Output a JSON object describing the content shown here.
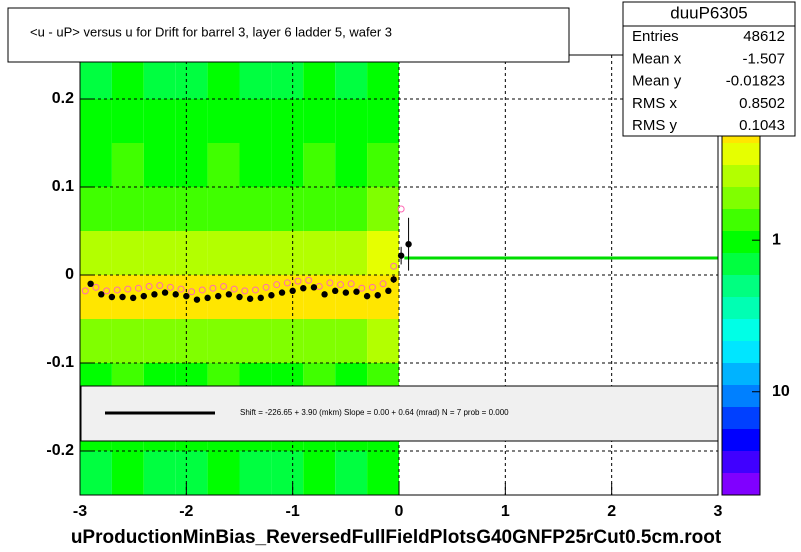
{
  "chart_data": {
    "type": "profile2d",
    "title": "<u - uP>       versus   u for Drift for barrel 3, layer 6 ladder 5, wafer 3",
    "xlabel": "uProductionMinBias_ReversedFullFieldPlotsG40GNFP25rCut0.5cm.root",
    "xlim": [
      -3,
      3
    ],
    "xticks": [
      -3,
      -2,
      -1,
      0,
      1,
      2,
      3
    ],
    "ylim": [
      -0.25,
      0.25
    ],
    "yticks": [
      -0.2,
      -0.1,
      0,
      0.1,
      0.2
    ],
    "grid": true,
    "zlog": true,
    "zlim": [
      0.06,
      48
    ],
    "zticks": [
      1,
      10
    ],
    "palette": [
      "#ff2a00",
      "#ff7f00",
      "#ffb300",
      "#ffe600",
      "#e6ff00",
      "#b3ff00",
      "#80ff00",
      "#40ff00",
      "#00ff00",
      "#00ff40",
      "#00ff80",
      "#00ffb3",
      "#00ffe6",
      "#00e6ff",
      "#00b3ff",
      "#0080ff",
      "#0040ff",
      "#0000ff",
      "#4000ff",
      "#8000ff"
    ],
    "heatmap": {
      "xbins": [
        -3,
        -2.7,
        -2.4,
        -2.1,
        -1.8,
        -1.5,
        -1.2,
        -0.9,
        -0.6,
        -0.3,
        0
      ],
      "ybins": [
        -0.25,
        -0.2,
        -0.15,
        -0.1,
        -0.05,
        0,
        0.05,
        0.1,
        0.15,
        0.2,
        0.25
      ],
      "z": [
        [
          1.3,
          1.2,
          1.4,
          1.3,
          1.2,
          1.3,
          1.4,
          1.2,
          1.3,
          1.2
        ],
        [
          1.1,
          1.0,
          1.2,
          1.1,
          1.0,
          1.1,
          1.2,
          1.0,
          1.1,
          1.0
        ],
        [
          0.9,
          0.8,
          0.9,
          0.9,
          0.8,
          0.9,
          0.9,
          0.8,
          0.9,
          0.8
        ],
        [
          0.5,
          0.45,
          0.5,
          0.5,
          0.45,
          0.5,
          0.5,
          0.45,
          0.5,
          0.4
        ],
        [
          0.22,
          0.2,
          0.22,
          0.21,
          0.2,
          0.22,
          0.21,
          0.2,
          0.22,
          0.18
        ],
        [
          0.35,
          0.32,
          0.35,
          0.34,
          0.32,
          0.35,
          0.34,
          0.32,
          0.35,
          0.3
        ],
        [
          0.7,
          0.65,
          0.7,
          0.7,
          0.65,
          0.7,
          0.7,
          0.65,
          0.7,
          0.6
        ],
        [
          0.9,
          0.85,
          0.9,
          0.9,
          0.85,
          0.9,
          0.9,
          0.85,
          0.9,
          0.8
        ],
        [
          1.1,
          1.0,
          1.1,
          1.1,
          1.0,
          1.1,
          1.1,
          1.0,
          1.1,
          1.0
        ],
        [
          1.3,
          1.2,
          1.3,
          1.3,
          1.2,
          1.3,
          1.3,
          1.2,
          1.3,
          1.2
        ]
      ]
    },
    "series": [
      {
        "color": "#ff69b4",
        "x": [
          -2.95,
          -2.85,
          -2.75,
          -2.65,
          -2.55,
          -2.45,
          -2.35,
          -2.25,
          -2.15,
          -2.05,
          -1.95,
          -1.85,
          -1.75,
          -1.65,
          -1.55,
          -1.45,
          -1.35,
          -1.25,
          -1.15,
          -1.05,
          -0.95,
          -0.85,
          -0.75,
          -0.65,
          -0.55,
          -0.45,
          -0.35,
          -0.25,
          -0.15,
          -0.05,
          0.02
        ],
        "values": [
          -0.018,
          -0.014,
          -0.018,
          -0.017,
          -0.016,
          -0.015,
          -0.013,
          -0.012,
          -0.014,
          -0.016,
          -0.019,
          -0.017,
          -0.015,
          -0.013,
          -0.016,
          -0.018,
          -0.017,
          -0.014,
          -0.011,
          -0.009,
          -0.007,
          -0.006,
          -0.013,
          -0.009,
          -0.011,
          -0.01,
          -0.015,
          -0.014,
          -0.01,
          0.01,
          0.075
        ]
      },
      {
        "color": "#000000",
        "x": [
          -2.9,
          -2.8,
          -2.7,
          -2.6,
          -2.5,
          -2.4,
          -2.3,
          -2.2,
          -2.1,
          -2.0,
          -1.9,
          -1.8,
          -1.7,
          -1.6,
          -1.5,
          -1.4,
          -1.3,
          -1.2,
          -1.1,
          -1.0,
          -0.9,
          -0.8,
          -0.7,
          -0.6,
          -0.5,
          -0.4,
          -0.3,
          -0.2,
          -0.1,
          -0.05,
          0.02,
          0.09
        ],
        "values": [
          -0.01,
          -0.022,
          -0.025,
          -0.025,
          -0.026,
          -0.024,
          -0.022,
          -0.02,
          -0.022,
          -0.024,
          -0.028,
          -0.026,
          -0.024,
          -0.022,
          -0.025,
          -0.027,
          -0.026,
          -0.023,
          -0.02,
          -0.018,
          -0.015,
          -0.014,
          -0.022,
          -0.018,
          -0.02,
          -0.019,
          -0.024,
          -0.023,
          -0.018,
          -0.005,
          0.022,
          0.035
        ],
        "errors": [
          0.002,
          0.002,
          0.002,
          0.002,
          0.002,
          0.002,
          0.002,
          0.002,
          0.002,
          0.002,
          0.002,
          0.002,
          0.002,
          0.002,
          0.002,
          0.002,
          0.002,
          0.002,
          0.002,
          0.002,
          0.002,
          0.002,
          0.002,
          0.002,
          0.002,
          0.002,
          0.002,
          0.002,
          0.002,
          0.004,
          0.01,
          0.03
        ]
      }
    ],
    "fit_line": {
      "color": "#00dd00",
      "x": [
        0.05,
        3
      ],
      "values": [
        0.0193,
        0.0193
      ]
    },
    "fit_text": "Shift =  -226.65 + 3.90 (mkm) Slope =     0.00 + 0.64 (mrad)  N = 7 prob = 0.000",
    "stats": {
      "title": "duuP6305",
      "rows": [
        [
          "Entries",
          "48612"
        ],
        [
          "Mean x",
          "-1.507"
        ],
        [
          "Mean y",
          "-0.01823"
        ],
        [
          "RMS x",
          "0.8502"
        ],
        [
          "RMS y",
          "0.1043"
        ]
      ]
    }
  }
}
